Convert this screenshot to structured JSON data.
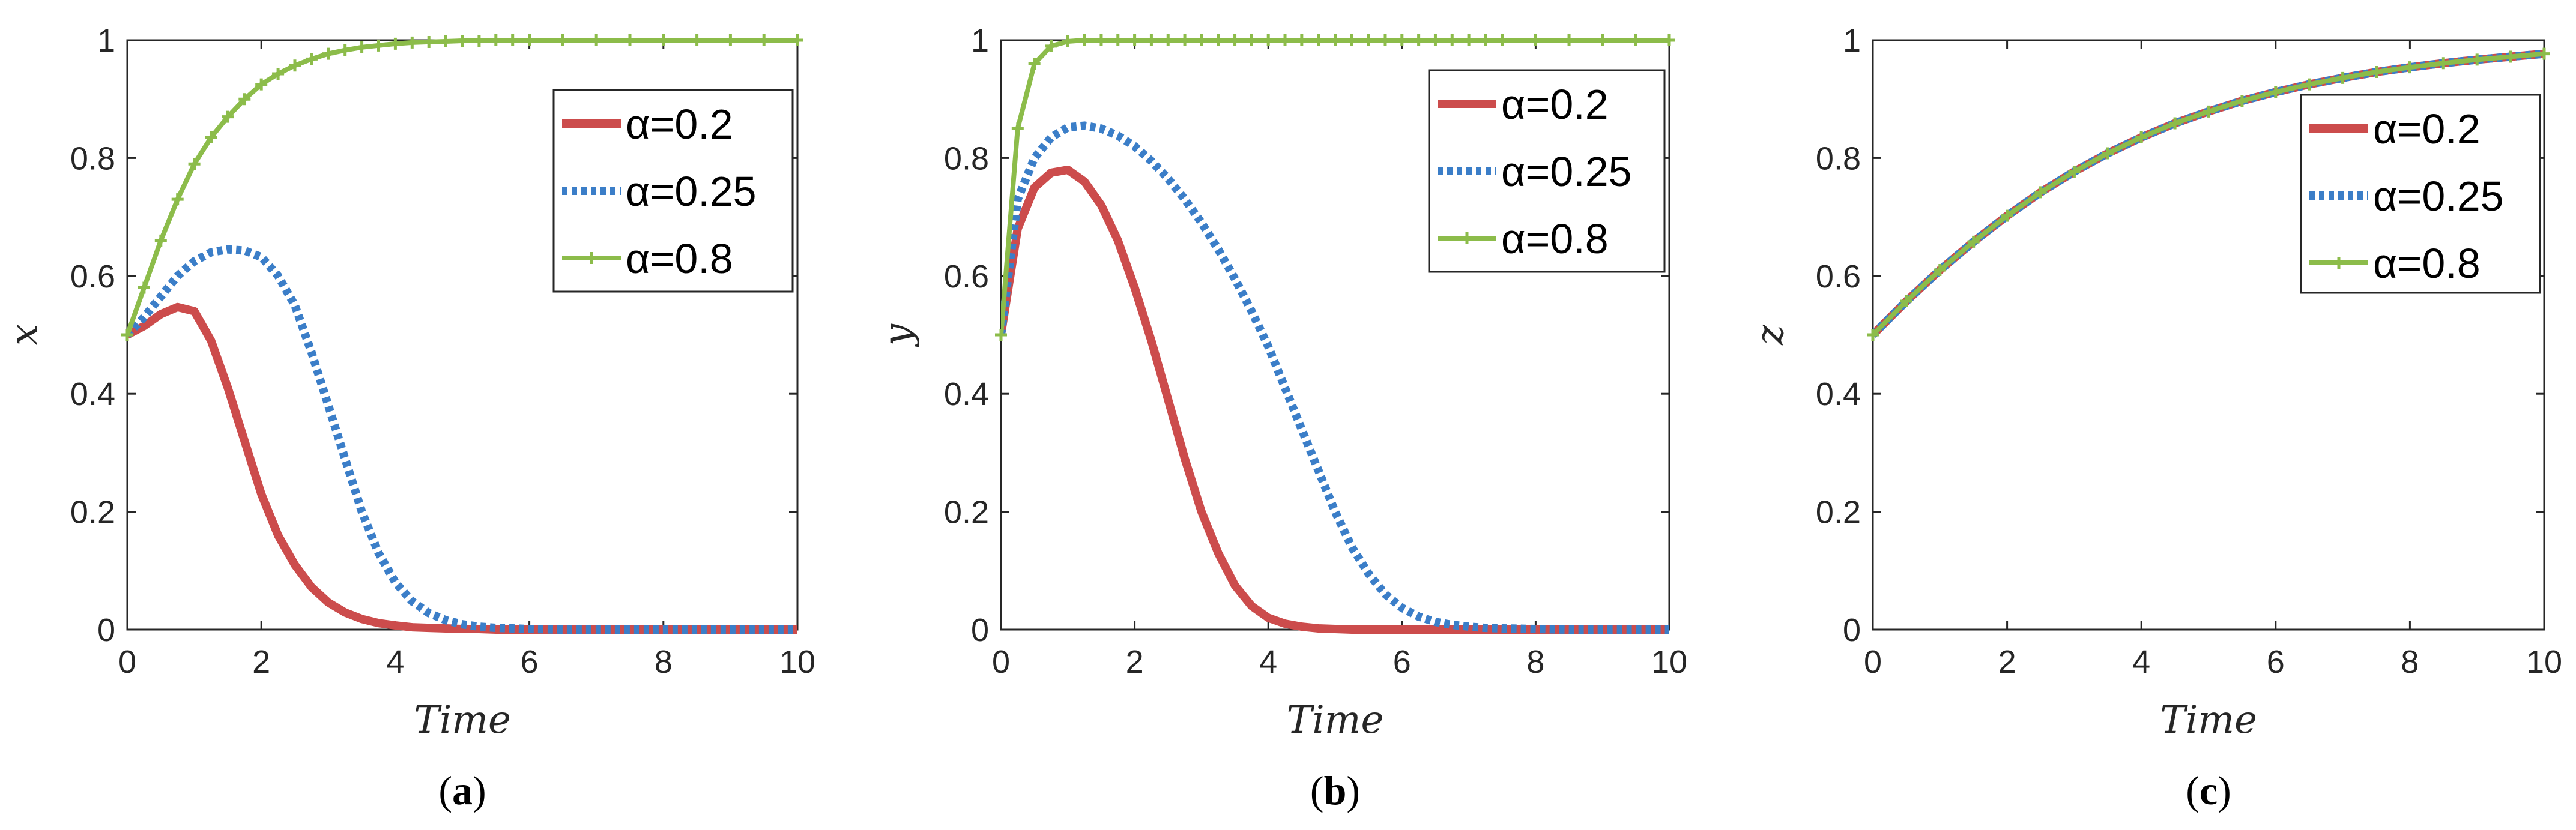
{
  "colors": {
    "red": "#cc4c4c",
    "blue": "#3b7ec8",
    "green": "#8cbc4a",
    "axis": "#262626"
  },
  "chart_data": [
    {
      "type": "line",
      "panel": "a",
      "caption_open": "(",
      "caption_letter": "a",
      "caption_close": ")",
      "xlabel": "Time",
      "ylabel": "x",
      "xlim": [
        0,
        10
      ],
      "ylim": [
        0,
        1
      ],
      "xticks": [
        "0",
        "2",
        "4",
        "6",
        "8",
        "10"
      ],
      "yticks": [
        "0",
        "0.2",
        "0.4",
        "0.6",
        "0.8",
        "1"
      ],
      "legend_position": "top-right",
      "x": [
        0,
        0.25,
        0.5,
        0.75,
        1,
        1.25,
        1.5,
        1.75,
        2,
        2.25,
        2.5,
        2.75,
        3,
        3.25,
        3.5,
        3.75,
        4,
        4.25,
        4.5,
        4.75,
        5,
        5.25,
        5.5,
        5.75,
        6,
        6.5,
        7,
        7.5,
        8,
        8.5,
        9,
        9.5,
        10
      ],
      "series": [
        {
          "name": "α=0.2",
          "style": "solid",
          "color": "red",
          "values": [
            0.5,
            0.515,
            0.535,
            0.547,
            0.54,
            0.49,
            0.41,
            0.32,
            0.23,
            0.16,
            0.11,
            0.072,
            0.046,
            0.029,
            0.018,
            0.011,
            0.007,
            0.004,
            0.003,
            0.002,
            0.001,
            0.001,
            0,
            0,
            0,
            0,
            0,
            0,
            0,
            0,
            0,
            0,
            0
          ]
        },
        {
          "name": "α=0.25",
          "style": "dotted",
          "color": "blue",
          "values": [
            0.5,
            0.53,
            0.565,
            0.6,
            0.625,
            0.64,
            0.645,
            0.643,
            0.632,
            0.6,
            0.55,
            0.47,
            0.38,
            0.29,
            0.2,
            0.13,
            0.08,
            0.048,
            0.028,
            0.016,
            0.009,
            0.005,
            0.003,
            0.002,
            0.001,
            0,
            0,
            0,
            0,
            0,
            0,
            0,
            0
          ]
        },
        {
          "name": "α=0.8",
          "style": "solid-marker",
          "color": "green",
          "values": [
            0.5,
            0.58,
            0.66,
            0.73,
            0.79,
            0.835,
            0.87,
            0.9,
            0.925,
            0.943,
            0.957,
            0.968,
            0.977,
            0.983,
            0.988,
            0.991,
            0.994,
            0.996,
            0.997,
            0.998,
            0.999,
            0.999,
            1,
            1,
            1,
            1,
            1,
            1,
            1,
            1,
            1,
            1,
            1
          ]
        }
      ]
    },
    {
      "type": "line",
      "panel": "b",
      "caption_open": "(",
      "caption_letter": "b",
      "caption_close": ")",
      "xlabel": "Time",
      "ylabel": "y",
      "xlim": [
        0,
        10
      ],
      "ylim": [
        0,
        1
      ],
      "xticks": [
        "0",
        "2",
        "4",
        "6",
        "8",
        "10"
      ],
      "yticks": [
        "0",
        "0.2",
        "0.4",
        "0.6",
        "0.8",
        "1"
      ],
      "legend_position": "top-right",
      "x": [
        0,
        0.25,
        0.5,
        0.75,
        1,
        1.25,
        1.5,
        1.75,
        2,
        2.25,
        2.5,
        2.75,
        3,
        3.25,
        3.5,
        3.75,
        4,
        4.25,
        4.5,
        4.75,
        5,
        5.25,
        5.5,
        5.75,
        6,
        6.25,
        6.5,
        6.75,
        7,
        7.25,
        7.5,
        8,
        8.5,
        9,
        9.5,
        10
      ],
      "series": [
        {
          "name": "α=0.2",
          "style": "solid",
          "color": "red",
          "values": [
            0.5,
            0.68,
            0.75,
            0.775,
            0.78,
            0.76,
            0.72,
            0.66,
            0.58,
            0.49,
            0.39,
            0.29,
            0.2,
            0.13,
            0.075,
            0.04,
            0.02,
            0.01,
            0.005,
            0.002,
            0.001,
            0,
            0,
            0,
            0,
            0,
            0,
            0,
            0,
            0,
            0,
            0,
            0,
            0,
            0,
            0
          ]
        },
        {
          "name": "α=0.25",
          "style": "dotted",
          "color": "blue",
          "values": [
            0.5,
            0.73,
            0.8,
            0.835,
            0.852,
            0.855,
            0.85,
            0.838,
            0.82,
            0.795,
            0.765,
            0.73,
            0.69,
            0.645,
            0.595,
            0.54,
            0.48,
            0.41,
            0.34,
            0.27,
            0.2,
            0.14,
            0.095,
            0.06,
            0.037,
            0.022,
            0.013,
            0.008,
            0.005,
            0.003,
            0.002,
            0.001,
            0,
            0,
            0,
            0
          ]
        },
        {
          "name": "α=0.8",
          "style": "solid-marker",
          "color": "green",
          "values": [
            0.5,
            0.85,
            0.96,
            0.99,
            0.998,
            1,
            1,
            1,
            1,
            1,
            1,
            1,
            1,
            1,
            1,
            1,
            1,
            1,
            1,
            1,
            1,
            1,
            1,
            1,
            1,
            1,
            1,
            1,
            1,
            1,
            1,
            1,
            1,
            1,
            1,
            1
          ]
        }
      ]
    },
    {
      "type": "line",
      "panel": "c",
      "caption_open": "(",
      "caption_letter": "c",
      "caption_close": ")",
      "xlabel": "Time",
      "ylabel": "z",
      "xlim": [
        0,
        10
      ],
      "ylim": [
        0,
        1
      ],
      "xticks": [
        "0",
        "2",
        "4",
        "6",
        "8",
        "10"
      ],
      "yticks": [
        "0",
        "0.2",
        "0.4",
        "0.6",
        "0.8",
        "1"
      ],
      "legend_position": "top-right",
      "x": [
        0,
        0.5,
        1,
        1.5,
        2,
        2.5,
        3,
        3.5,
        4,
        4.5,
        5,
        5.5,
        6,
        6.5,
        7,
        7.5,
        8,
        8.5,
        9,
        9.5,
        10
      ],
      "series": [
        {
          "name": "α=0.2",
          "style": "solid",
          "color": "red",
          "values": [
            0.5,
            0.557,
            0.61,
            0.658,
            0.702,
            0.742,
            0.777,
            0.808,
            0.835,
            0.859,
            0.879,
            0.897,
            0.912,
            0.925,
            0.936,
            0.946,
            0.954,
            0.961,
            0.967,
            0.972,
            0.977
          ]
        },
        {
          "name": "α=0.25",
          "style": "dotted",
          "color": "blue",
          "values": [
            0.5,
            0.557,
            0.61,
            0.658,
            0.702,
            0.742,
            0.777,
            0.808,
            0.835,
            0.859,
            0.879,
            0.897,
            0.912,
            0.925,
            0.936,
            0.946,
            0.954,
            0.961,
            0.967,
            0.972,
            0.977
          ]
        },
        {
          "name": "α=0.8",
          "style": "solid-marker",
          "color": "green",
          "values": [
            0.5,
            0.557,
            0.61,
            0.658,
            0.702,
            0.742,
            0.777,
            0.808,
            0.835,
            0.859,
            0.879,
            0.897,
            0.912,
            0.925,
            0.936,
            0.946,
            0.954,
            0.961,
            0.967,
            0.972,
            0.977
          ]
        }
      ]
    }
  ]
}
